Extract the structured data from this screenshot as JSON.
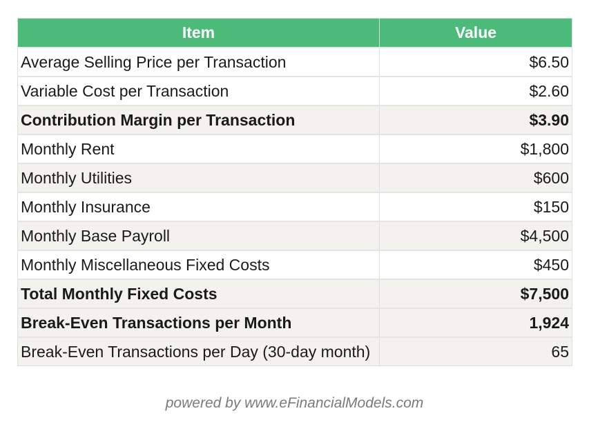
{
  "table": {
    "headers": [
      "Item",
      "Value"
    ],
    "rows": [
      {
        "item": "Average Selling Price per Transaction",
        "value": "$6.50"
      },
      {
        "item": "Variable Cost per Transaction",
        "value": "$2.60"
      },
      {
        "item": "Contribution Margin per Transaction",
        "value": "$3.90"
      },
      {
        "item": "Monthly Rent",
        "value": "$1,800"
      },
      {
        "item": "Monthly Utilities",
        "value": "$600"
      },
      {
        "item": "Monthly Insurance",
        "value": "$150"
      },
      {
        "item": "Monthly Base Payroll",
        "value": "$4,500"
      },
      {
        "item": "Monthly Miscellaneous Fixed Costs",
        "value": "$450"
      },
      {
        "item": "Total Monthly Fixed Costs",
        "value": "$7,500"
      },
      {
        "item": "Break-Even Transactions per Month",
        "value": "1,924"
      },
      {
        "item": "Break-Even Transactions per Day (30-day month)",
        "value": "65"
      }
    ]
  },
  "footer": {
    "text": "powered by  www.eFinancialModels.com"
  },
  "colors": {
    "header_bg": "#4cbb7a",
    "shaded_row_bg": "#f3f2ee"
  }
}
